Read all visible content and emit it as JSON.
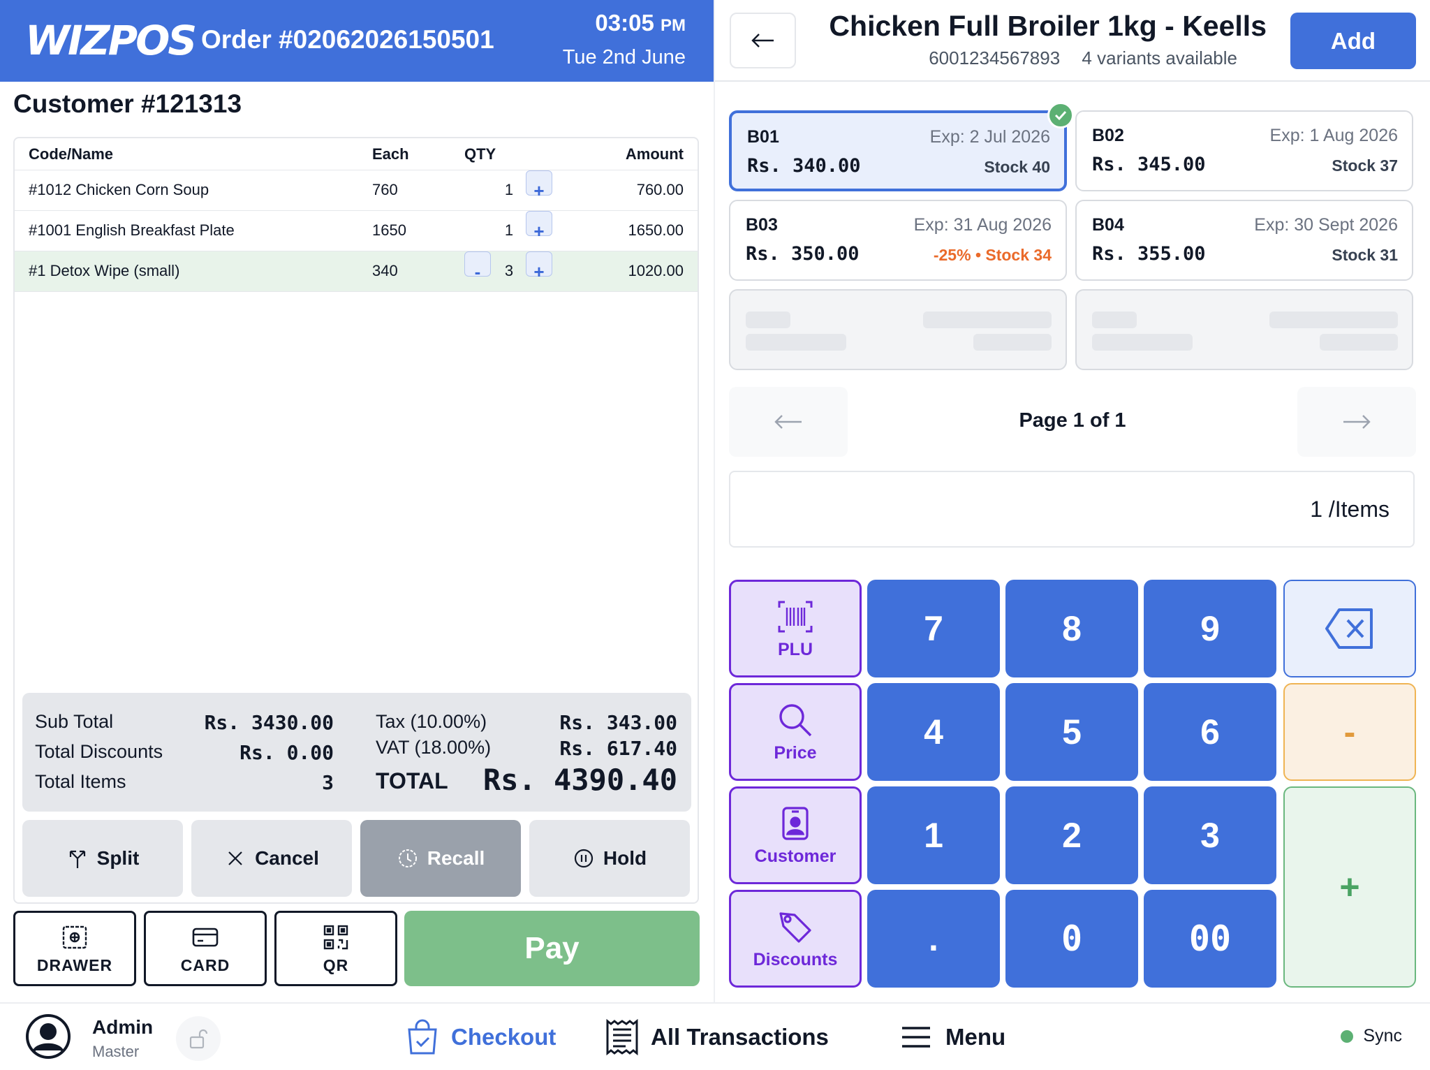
{
  "header": {
    "logo": "WIZPOS",
    "order": "Order #02062026150501",
    "time": "03:05",
    "ampm": "PM",
    "date": "Tue 2nd June"
  },
  "customer": {
    "title": "Customer #121313"
  },
  "cart": {
    "columns": {
      "name": "Code/Name",
      "each": "Each",
      "qty": "QTY",
      "amount": "Amount"
    },
    "rows": [
      {
        "name": "#1012 Chicken Corn Soup",
        "each": "760",
        "qty": "1",
        "amount": "760.00"
      },
      {
        "name": "#1001 English Breakfast Plate",
        "each": "1650",
        "qty": "1",
        "amount": "1650.00"
      },
      {
        "name": "#1 Detox Wipe (small)",
        "each": "340",
        "qty": "3",
        "amount": "1020.00"
      }
    ],
    "plus_label": "+",
    "minus_label": "-"
  },
  "summary": {
    "subtotal_label": "Sub Total",
    "subtotal": "Rs. 3430.00",
    "discounts_label": "Total Discounts",
    "discounts": "Rs. 0.00",
    "items_label": "Total Items",
    "items": "3",
    "tax_label": "Tax (10.00%)",
    "tax": "Rs. 343.00",
    "vat_label": "VAT (18.00%)",
    "vat": "Rs. 617.40",
    "total_label": "TOTAL",
    "total": "Rs. 4390.40"
  },
  "actions": {
    "split": "Split",
    "cancel": "Cancel",
    "recall": "Recall",
    "hold": "Hold"
  },
  "payments": {
    "drawer": "DRAWER",
    "card": "CARD",
    "qr": "QR",
    "pay": "Pay"
  },
  "product": {
    "title": "Chicken Full Broiler 1kg - Keells",
    "barcode": "6001234567893",
    "variants_note": "4 variants available",
    "add": "Add",
    "variants": [
      {
        "code": "B01",
        "exp": "Exp: 2 Jul 2026",
        "price": "Rs. 340.00",
        "stock": "Stock 40"
      },
      {
        "code": "B02",
        "exp": "Exp: 1 Aug 2026",
        "price": "Rs. 345.00",
        "stock": "Stock 37"
      },
      {
        "code": "B03",
        "exp": "Exp: 31 Aug 2026",
        "price": "Rs. 350.00",
        "stock": "-25% • Stock 34"
      },
      {
        "code": "B04",
        "exp": "Exp: 30 Sept 2026",
        "price": "Rs. 355.00",
        "stock": "Stock 31"
      }
    ],
    "page": "Page 1 of 1",
    "qty_display": "1 /Items"
  },
  "keypad": {
    "plu": "PLU",
    "price": "Price",
    "customer": "Customer",
    "discounts": "Discounts",
    "k7": "7",
    "k8": "8",
    "k9": "9",
    "k4": "4",
    "k5": "5",
    "k6": "6",
    "k1": "1",
    "k2": "2",
    "k3": "3",
    "kdot": ".",
    "k0": "0",
    "k00": "00",
    "minus": "-",
    "plus": "+"
  },
  "footer": {
    "user": "Admin",
    "role": "Master",
    "checkout": "Checkout",
    "transactions": "All Transactions",
    "menu": "Menu",
    "sync": "Sync"
  },
  "colors": {
    "primary": "#4070da",
    "pay": "#7dbf8a",
    "purple": "#6d28d9",
    "success": "#5cb073",
    "warn": "#ea6a2a"
  }
}
